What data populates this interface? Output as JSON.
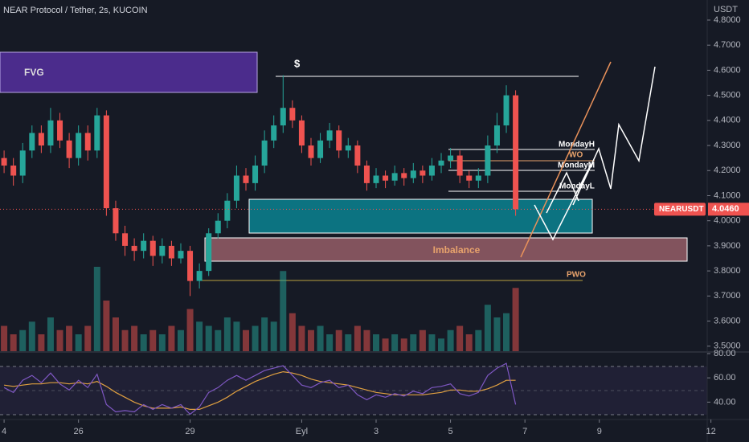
{
  "chart_data": {
    "type": "candlestick",
    "title": "NEAR Protocol / Tether, 2s, KUCOIN",
    "y_axis_label": "USDT",
    "symbol_label": "NEARUSDT",
    "last_label": "4.0460",
    "up_color": "#26a69a",
    "down_color": "#ef5350",
    "x": [
      0,
      0.25,
      0.5,
      0.75,
      1,
      1.25,
      1.5,
      1.75,
      2,
      2.25,
      2.5,
      2.75,
      3,
      3.25,
      3.5,
      3.75,
      4,
      4.25,
      4.5,
      4.75,
      5,
      5.25,
      5.5,
      5.75,
      6,
      6.25,
      6.5,
      6.75,
      7,
      7.25,
      7.5,
      7.75,
      8,
      8.25,
      8.5,
      8.75,
      9,
      9.25,
      9.5,
      9.75,
      10,
      10.25,
      10.5,
      10.75,
      11,
      11.25,
      11.5,
      11.75,
      12,
      12.25,
      12.5,
      12.75,
      13,
      13.25,
      13.5,
      13.75
    ],
    "open": [
      4.25,
      4.22,
      4.18,
      4.28,
      4.35,
      4.3,
      4.4,
      4.32,
      4.25,
      4.35,
      4.28,
      4.42,
      4.05,
      3.95,
      3.9,
      3.88,
      3.92,
      3.86,
      3.9,
      3.85,
      3.88,
      3.76,
      3.8,
      3.95,
      4.0,
      4.08,
      4.18,
      4.15,
      4.22,
      4.32,
      4.38,
      4.45,
      4.4,
      4.3,
      4.25,
      4.32,
      4.36,
      4.28,
      4.3,
      4.22,
      4.15,
      4.18,
      4.16,
      4.19,
      4.17,
      4.2,
      4.18,
      4.22,
      4.24,
      4.26,
      4.18,
      4.16,
      4.18,
      4.3,
      4.38,
      4.5
    ],
    "high": [
      4.28,
      4.25,
      4.31,
      4.38,
      4.38,
      4.45,
      4.43,
      4.35,
      4.38,
      4.38,
      4.45,
      4.44,
      4.08,
      3.98,
      3.93,
      3.95,
      3.94,
      3.93,
      3.92,
      3.91,
      3.9,
      3.83,
      3.97,
      4.03,
      4.11,
      4.22,
      4.21,
      4.26,
      4.36,
      4.42,
      4.58,
      4.48,
      4.42,
      4.33,
      4.35,
      4.39,
      4.38,
      4.33,
      4.32,
      4.24,
      4.21,
      4.2,
      4.22,
      4.21,
      4.23,
      4.22,
      4.25,
      4.27,
      4.29,
      4.28,
      4.2,
      4.21,
      4.34,
      4.43,
      4.54,
      4.52
    ],
    "low": [
      4.19,
      4.14,
      4.15,
      4.25,
      4.27,
      4.27,
      4.29,
      4.21,
      4.22,
      4.24,
      4.25,
      4.02,
      3.92,
      3.86,
      3.84,
      3.85,
      3.82,
      3.83,
      3.82,
      3.83,
      3.7,
      3.73,
      3.78,
      3.93,
      3.97,
      4.05,
      4.12,
      4.12,
      4.19,
      4.29,
      4.35,
      4.37,
      4.27,
      4.22,
      4.23,
      4.29,
      4.25,
      4.25,
      4.19,
      4.12,
      4.13,
      4.13,
      4.14,
      4.14,
      4.15,
      4.15,
      4.16,
      4.19,
      4.21,
      4.15,
      4.13,
      4.13,
      4.15,
      4.27,
      4.35,
      4.02
    ],
    "close": [
      4.22,
      4.18,
      4.28,
      4.35,
      4.3,
      4.4,
      4.32,
      4.25,
      4.35,
      4.28,
      4.42,
      4.05,
      3.95,
      3.9,
      3.88,
      3.92,
      3.86,
      3.9,
      3.85,
      3.88,
      3.76,
      3.8,
      3.95,
      4.0,
      4.08,
      4.18,
      4.15,
      4.22,
      4.32,
      4.38,
      4.45,
      4.4,
      4.3,
      4.25,
      4.32,
      4.36,
      4.28,
      4.3,
      4.22,
      4.15,
      4.18,
      4.16,
      4.19,
      4.17,
      4.2,
      4.18,
      4.22,
      4.24,
      4.26,
      4.18,
      4.16,
      4.18,
      4.3,
      4.38,
      4.5,
      4.046
    ],
    "volume": [
      30,
      20,
      25,
      35,
      20,
      40,
      25,
      30,
      20,
      30,
      100,
      60,
      40,
      25,
      30,
      20,
      25,
      20,
      30,
      25,
      50,
      35,
      30,
      25,
      40,
      35,
      25,
      30,
      40,
      35,
      95,
      45,
      30,
      25,
      30,
      20,
      25,
      20,
      30,
      25,
      20,
      15,
      20,
      15,
      20,
      25,
      20,
      15,
      25,
      30,
      20,
      25,
      55,
      40,
      45,
      75
    ],
    "xlim": [
      -0.11,
      18.9
    ],
    "xticks": [
      {
        "value": 0,
        "label": "4"
      },
      {
        "value": 2,
        "label": "26"
      },
      {
        "value": 5,
        "label": "29"
      },
      {
        "value": 8,
        "label": "Eyl"
      },
      {
        "value": 10,
        "label": "3"
      },
      {
        "value": 12,
        "label": "5"
      },
      {
        "value": 14,
        "label": "7"
      },
      {
        "value": 16,
        "label": "9"
      },
      {
        "value": 19,
        "label": "12"
      }
    ],
    "ylim": [
      3.48,
      4.88
    ],
    "yticks": [
      {
        "value": 3.5,
        "label": "3.5000"
      },
      {
        "value": 3.6,
        "label": "3.6000"
      },
      {
        "value": 3.7,
        "label": "3.7000"
      },
      {
        "value": 3.8,
        "label": "3.8000"
      },
      {
        "value": 3.9,
        "label": "3.9000"
      },
      {
        "value": 4.0,
        "label": "4.0000"
      },
      {
        "value": 4.1,
        "label": "4.1000"
      },
      {
        "value": 4.2,
        "label": "4.2000"
      },
      {
        "value": 4.3,
        "label": "4.3000"
      },
      {
        "value": 4.4,
        "label": "4.4000"
      },
      {
        "value": 4.5,
        "label": "4.5000"
      },
      {
        "value": 4.6,
        "label": "4.6000"
      },
      {
        "value": 4.7,
        "label": "4.7000"
      },
      {
        "value": 4.8,
        "label": "4.8000"
      }
    ],
    "annotations": {
      "fvg": "FVG",
      "dollar": "$",
      "imbalance": "Imbalance",
      "pwo": "PWO",
      "monday_high": "MondayH",
      "wo": "WO",
      "monday_mid": "MondayM",
      "monday_low": "MondayL"
    },
    "rsi": {
      "values": [
        52,
        48,
        58,
        62,
        56,
        64,
        55,
        50,
        58,
        52,
        63,
        38,
        32,
        33,
        32,
        38,
        34,
        38,
        35,
        38,
        30,
        36,
        48,
        52,
        58,
        62,
        58,
        62,
        66,
        68,
        70,
        62,
        54,
        52,
        56,
        58,
        52,
        54,
        46,
        42,
        46,
        44,
        47,
        45,
        49,
        47,
        52,
        53,
        55,
        47,
        45,
        48,
        62,
        68,
        72,
        38
      ],
      "ma": [
        54,
        53,
        54,
        55,
        55,
        56,
        56,
        55,
        56,
        55,
        57,
        53,
        48,
        44,
        40,
        37,
        35,
        35,
        35,
        36,
        34,
        34,
        37,
        40,
        44,
        49,
        53,
        57,
        60,
        63,
        65,
        64,
        62,
        59,
        57,
        56,
        55,
        54,
        52,
        50,
        48,
        47,
        46,
        46,
        46,
        46,
        47,
        48,
        50,
        50,
        49,
        49,
        51,
        54,
        58,
        58
      ],
      "ylim": [
        27,
        80
      ],
      "yticks": [
        {
          "value": 80,
          "label": "80.00"
        },
        {
          "value": 60,
          "label": "60.00"
        },
        {
          "value": 40,
          "label": "40.00"
        }
      ],
      "color": "#7e57c2",
      "ma_color": "#e0a040"
    }
  }
}
